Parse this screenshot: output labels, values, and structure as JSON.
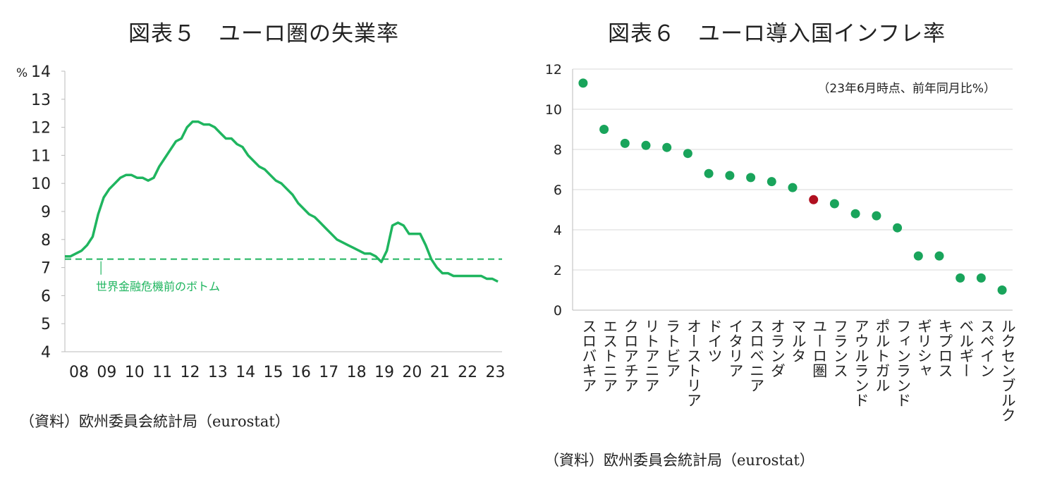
{
  "left": {
    "title": "図表５　ユーロ圏の失業率",
    "source": "（資料）欧州委員会統計局（eurostat）",
    "chart_data": {
      "type": "line",
      "title": "図表５　ユーロ圏の失業率",
      "ylabel": "%",
      "ylim": [
        4,
        14
      ],
      "yticks": [
        "4",
        "5",
        "6",
        "7",
        "8",
        "9",
        "10",
        "11",
        "12",
        "13",
        "14"
      ],
      "xticks": [
        "08",
        "09",
        "10",
        "11",
        "12",
        "13",
        "14",
        "15",
        "16",
        "17",
        "18",
        "19",
        "20",
        "21",
        "22",
        "23"
      ],
      "xlim": [
        2008.0,
        2023.75
      ],
      "series": [
        {
          "x": [
            2008.0,
            2008.2,
            2008.4,
            2008.6,
            2008.8,
            2009.0,
            2009.2,
            2009.4,
            2009.6,
            2009.8,
            2010.0,
            2010.2,
            2010.4,
            2010.6,
            2010.8,
            2011.0,
            2011.2,
            2011.4,
            2011.6,
            2011.8,
            2012.0,
            2012.2,
            2012.4,
            2012.6,
            2012.8,
            2013.0,
            2013.2,
            2013.4,
            2013.6,
            2013.8,
            2014.0,
            2014.2,
            2014.4,
            2014.6,
            2014.8,
            2015.0,
            2015.2,
            2015.4,
            2015.6,
            2015.8,
            2016.0,
            2016.2,
            2016.4,
            2016.6,
            2016.8,
            2017.0,
            2017.2,
            2017.4,
            2017.6,
            2017.8,
            2018.0,
            2018.2,
            2018.4,
            2018.6,
            2018.8,
            2019.0,
            2019.2,
            2019.4,
            2019.6,
            2019.8,
            2020.0,
            2020.2,
            2020.4,
            2020.6,
            2020.7,
            2020.8,
            2021.0,
            2021.2,
            2021.4,
            2021.6,
            2021.8,
            2022.0,
            2022.2,
            2022.4,
            2022.6,
            2022.8,
            2023.0,
            2023.2,
            2023.4,
            2023.6
          ],
          "values": [
            7.4,
            7.4,
            7.5,
            7.6,
            7.8,
            8.1,
            8.9,
            9.5,
            9.8,
            10.0,
            10.2,
            10.3,
            10.3,
            10.2,
            10.2,
            10.1,
            10.2,
            10.6,
            10.9,
            11.2,
            11.5,
            11.6,
            12.0,
            12.2,
            12.2,
            12.1,
            12.1,
            12.0,
            11.8,
            11.6,
            11.6,
            11.4,
            11.3,
            11.0,
            10.8,
            10.6,
            10.5,
            10.3,
            10.1,
            10.0,
            9.8,
            9.6,
            9.3,
            9.1,
            8.9,
            8.8,
            8.6,
            8.4,
            8.2,
            8.0,
            7.9,
            7.8,
            7.7,
            7.6,
            7.5,
            7.5,
            7.4,
            7.2,
            7.6,
            8.5,
            8.6,
            8.5,
            8.2,
            8.2,
            8.2,
            8.2,
            7.8,
            7.3,
            7.0,
            6.8,
            6.8,
            6.7,
            6.7,
            6.7,
            6.7,
            6.7,
            6.7,
            6.6,
            6.6,
            6.5
          ]
        }
      ],
      "reference_line": {
        "value": 7.3,
        "label": "世界金融危機前のボトム",
        "style": "dashed"
      },
      "color": "#1fb55f"
    }
  },
  "right": {
    "title": "図表６　ユーロ導入国インフレ率",
    "source": "（資料）欧州委員会統計局（eurostat）",
    "chart_data": {
      "type": "scatter",
      "title": "図表６　ユーロ導入国インフレ率",
      "annotation": "（23年6月時点、前年同月比%）",
      "ylim": [
        0,
        12
      ],
      "yticks": [
        "0",
        "2",
        "4",
        "6",
        "8",
        "10",
        "12"
      ],
      "grid": true,
      "categories": [
        "スロバキア",
        "エストニア",
        "クロアチア",
        "リトアニア",
        "ラトビア",
        "オーストリア",
        "ドイツ",
        "イタリア",
        "スロベニア",
        "オランダ",
        "マルタ",
        "ユーロ圏",
        "フランス",
        "アウルランド",
        "ポルトガル",
        "フィンランド",
        "ギリシャ",
        "キプロス",
        "ベルギー",
        "スペイン",
        "ルクセンブルク"
      ],
      "values": [
        11.3,
        9.0,
        8.3,
        8.2,
        8.1,
        7.8,
        6.8,
        6.7,
        6.6,
        6.4,
        6.1,
        5.5,
        5.3,
        4.8,
        4.7,
        4.1,
        2.7,
        2.7,
        1.6,
        1.6,
        1.0
      ],
      "highlight_category": "ユーロ圏",
      "colors": {
        "point": "#19a45b",
        "highlight": "#b01020",
        "grid": "#d9d9d9"
      }
    }
  }
}
